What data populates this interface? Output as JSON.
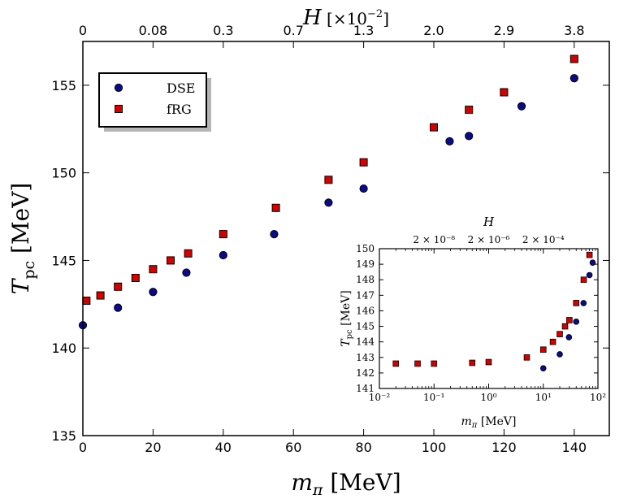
{
  "chart_data": [
    {
      "type": "scatter",
      "xlabel": "m_π [MeV]",
      "ylabel": "T_pc [MeV]",
      "top_xlabel": "H [×10^-2]",
      "xlim": [
        0,
        150
      ],
      "ylim": [
        135,
        157.5
      ],
      "x_ticks": [
        0,
        20,
        40,
        60,
        80,
        100,
        120,
        140
      ],
      "y_ticks": [
        135,
        140,
        145,
        150,
        155
      ],
      "top_ticks": [
        {
          "x": 0,
          "label": "0"
        },
        {
          "x": 20,
          "label": "0.08"
        },
        {
          "x": 40,
          "label": "0.3"
        },
        {
          "x": 60,
          "label": "0.7"
        },
        {
          "x": 80,
          "label": "1.3"
        },
        {
          "x": 100,
          "label": "2.0"
        },
        {
          "x": 120,
          "label": "2.9"
        },
        {
          "x": 140,
          "label": "3.8"
        }
      ],
      "legend_position": "top-left",
      "series": [
        {
          "name": "DSE",
          "marker": "circle",
          "color": "#0a0a8c",
          "points": [
            [
              0,
              141.3
            ],
            [
              10,
              142.3
            ],
            [
              20,
              143.2
            ],
            [
              29.5,
              144.3
            ],
            [
              40,
              145.3
            ],
            [
              54.5,
              146.5
            ],
            [
              70,
              148.3
            ],
            [
              80,
              149.1
            ],
            [
              104.5,
              151.8
            ],
            [
              110,
              152.1
            ],
            [
              125,
              153.8
            ],
            [
              140,
              155.4
            ]
          ]
        },
        {
          "name": "fRG",
          "marker": "square",
          "color": "#d40000",
          "points": [
            [
              1,
              142.7
            ],
            [
              5,
              143.0
            ],
            [
              10,
              143.5
            ],
            [
              15,
              144.0
            ],
            [
              20,
              144.5
            ],
            [
              25,
              145.0
            ],
            [
              30,
              145.4
            ],
            [
              40,
              146.5
            ],
            [
              55,
              148.0
            ],
            [
              70,
              149.6
            ],
            [
              80,
              150.6
            ],
            [
              100,
              152.6
            ],
            [
              110,
              153.6
            ],
            [
              120,
              154.6
            ],
            [
              140,
              156.5
            ]
          ]
        }
      ]
    },
    {
      "type": "scatter",
      "xscale": "log",
      "xlabel": "m_π [MeV]",
      "ylabel": "T_pc [MeV]",
      "top_xlabel": "H",
      "xlim": [
        0.01,
        100
      ],
      "ylim": [
        141,
        150
      ],
      "x_ticks": [
        {
          "x": 0.01,
          "label": "10⁻²"
        },
        {
          "x": 0.1,
          "label": "10⁻¹"
        },
        {
          "x": 1,
          "label": "10⁰"
        },
        {
          "x": 10,
          "label": "10¹"
        },
        {
          "x": 100,
          "label": "10²"
        }
      ],
      "y_ticks": [
        141,
        142,
        143,
        144,
        145,
        146,
        147,
        148,
        149,
        150
      ],
      "top_ticks": [
        {
          "x": 0.1,
          "label": "2 × 10⁻⁸"
        },
        {
          "x": 1,
          "label": "2 × 10⁻⁶"
        },
        {
          "x": 10,
          "label": "2 × 10⁻⁴"
        }
      ],
      "series": [
        {
          "name": "DSE",
          "marker": "circle",
          "color": "#0a0a8c",
          "points": [
            [
              10,
              142.3
            ],
            [
              20,
              143.2
            ],
            [
              29.5,
              144.3
            ],
            [
              40,
              145.3
            ],
            [
              54.5,
              146.5
            ],
            [
              70,
              148.3
            ],
            [
              80,
              149.1
            ]
          ]
        },
        {
          "name": "fRG",
          "marker": "square",
          "color": "#d40000",
          "points": [
            [
              0.02,
              142.6
            ],
            [
              0.05,
              142.6
            ],
            [
              0.1,
              142.6
            ],
            [
              0.5,
              142.65
            ],
            [
              1,
              142.7
            ],
            [
              5,
              143.0
            ],
            [
              10,
              143.5
            ],
            [
              15,
              144.0
            ],
            [
              20,
              144.5
            ],
            [
              25,
              145.0
            ],
            [
              30,
              145.4
            ],
            [
              40,
              146.5
            ],
            [
              55,
              148.0
            ],
            [
              70,
              149.6
            ]
          ]
        }
      ]
    }
  ]
}
